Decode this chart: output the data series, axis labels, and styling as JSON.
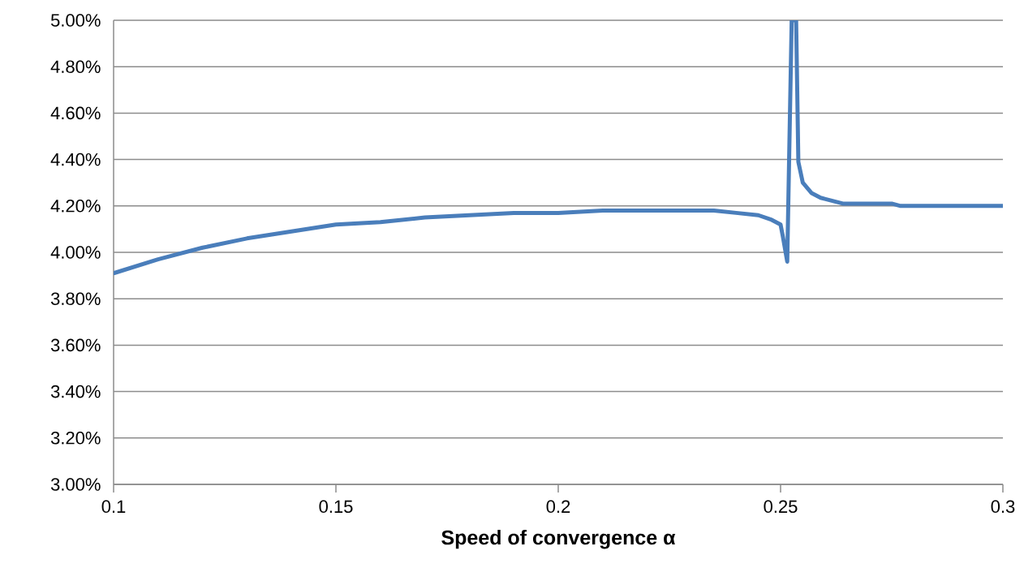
{
  "chart_data": {
    "type": "line",
    "xlabel": "Speed of convergence α",
    "x": [
      0.1,
      0.11,
      0.12,
      0.13,
      0.14,
      0.15,
      0.16,
      0.17,
      0.18,
      0.19,
      0.2,
      0.21,
      0.22,
      0.23,
      0.235,
      0.24,
      0.245,
      0.248,
      0.25,
      0.2505,
      0.2515,
      0.2525,
      0.2535,
      0.254,
      0.255,
      0.257,
      0.259,
      0.261,
      0.264,
      0.275,
      0.277,
      0.3
    ],
    "series": [
      {
        "color": "#4a7ebb",
        "values": [
          3.91,
          3.97,
          4.02,
          4.06,
          4.09,
          4.12,
          4.13,
          4.15,
          4.16,
          4.17,
          4.17,
          4.18,
          4.18,
          4.18,
          4.18,
          4.17,
          4.16,
          4.14,
          4.12,
          4.07,
          3.96,
          5.0,
          5.0,
          4.39,
          4.3,
          4.255,
          4.235,
          4.225,
          4.21,
          4.21,
          4.2,
          4.2
        ]
      }
    ],
    "xlim": [
      0.1,
      0.3
    ],
    "xticks": [
      0.1,
      0.15,
      0.2,
      0.25,
      0.3
    ],
    "ylim": [
      3.0,
      5.0
    ],
    "yticks": [
      {
        "value": 3.0,
        "label": "3.00%"
      },
      {
        "value": 3.2,
        "label": "3.20%"
      },
      {
        "value": 3.4,
        "label": "3.40%"
      },
      {
        "value": 3.6,
        "label": "3.60%"
      },
      {
        "value": 3.8,
        "label": "3.80%"
      },
      {
        "value": 4.0,
        "label": "4.00%"
      },
      {
        "value": 4.2,
        "label": "4.20%"
      },
      {
        "value": 4.4,
        "label": "4.40%"
      },
      {
        "value": 4.6,
        "label": "4.60%"
      },
      {
        "value": 4.8,
        "label": "4.80%"
      },
      {
        "value": 5.0,
        "label": "5.00%"
      }
    ],
    "grid": "y",
    "marker": "none",
    "line_style": "solid"
  }
}
